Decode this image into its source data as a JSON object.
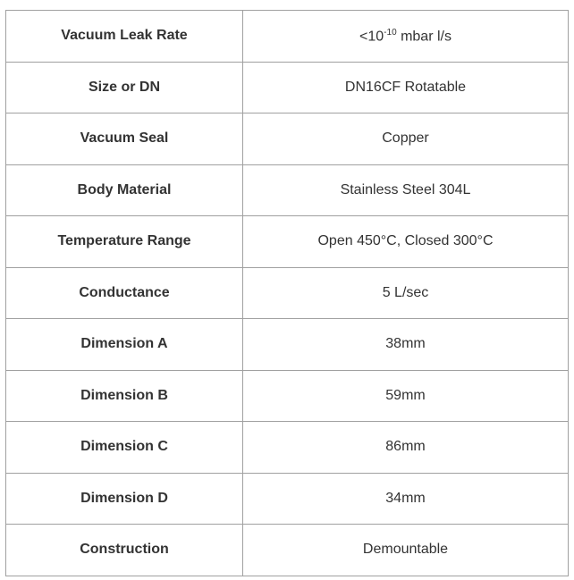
{
  "rows": [
    {
      "label": "Vacuum Leak Rate",
      "value_prefix": "<10",
      "value_sup": "-10",
      "value_suffix": " mbar l/s"
    },
    {
      "label": "Size or DN",
      "value": "DN16CF Rotatable"
    },
    {
      "label": "Vacuum Seal",
      "value": "Copper"
    },
    {
      "label": "Body Material",
      "value": "Stainless Steel 304L"
    },
    {
      "label": "Temperature Range",
      "value": "Open 450°C, Closed 300°C"
    },
    {
      "label": "Conductance",
      "value": "5 L/sec"
    },
    {
      "label": "Dimension A",
      "value": "38mm"
    },
    {
      "label": "Dimension B",
      "value": "59mm"
    },
    {
      "label": "Dimension C",
      "value": "86mm"
    },
    {
      "label": "Dimension D",
      "value": "34mm"
    },
    {
      "label": "Construction",
      "value": "Demountable"
    }
  ]
}
